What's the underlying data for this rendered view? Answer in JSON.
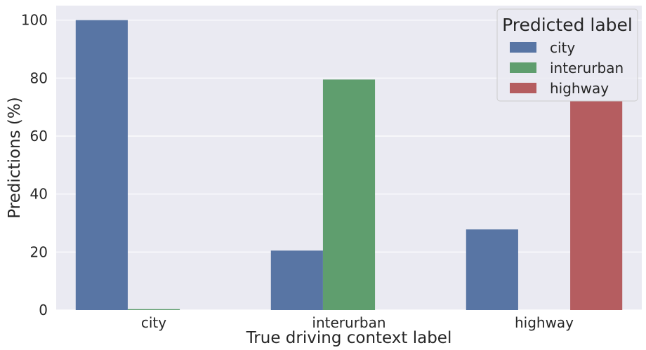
{
  "chart_data": {
    "type": "bar",
    "categories": [
      "city",
      "interurban",
      "highway"
    ],
    "series": [
      {
        "name": "city",
        "values": [
          100,
          20.5,
          27.8
        ],
        "color": "#5875a4"
      },
      {
        "name": "interurban",
        "values": [
          0.3,
          79.5,
          0
        ],
        "color": "#5f9e6e"
      },
      {
        "name": "highway",
        "values": [
          0,
          0,
          72.2
        ],
        "color": "#b55d60"
      }
    ],
    "xlabel": "True driving context label",
    "ylabel": "Predictions (%)",
    "ylim": [
      0,
      105
    ],
    "yticks": [
      0,
      20,
      40,
      60,
      80,
      100
    ],
    "grid": true,
    "background": "#eaeaf2",
    "legend": {
      "title": "Predicted label",
      "position": "top-right"
    }
  }
}
